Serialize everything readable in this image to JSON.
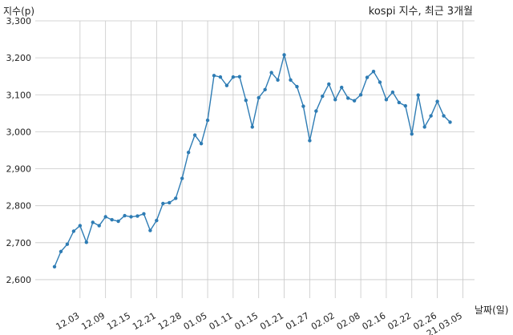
{
  "chart_data": {
    "type": "line",
    "title": "kospi 지수, 최근 3개월",
    "ylabel": "지수(p)",
    "xlabel": "날짜(일)",
    "ylim": [
      2550,
      3300
    ],
    "yticks": [
      2600,
      2700,
      2800,
      2900,
      3000,
      3100,
      3200,
      3300
    ],
    "ytick_labels": [
      "2,600",
      "2,700",
      "2,800",
      "2,900",
      "3,000",
      "3,100",
      "3,200",
      "3,300"
    ],
    "xtick_labels": [
      "12.03",
      "12.09",
      "12.15",
      "12.21",
      "12.28",
      "01.05",
      "01.11",
      "01.15",
      "01.21",
      "01.27",
      "02.02",
      "02.08",
      "02.16",
      "02.22",
      "02.26",
      "21.03.05"
    ],
    "xtick_index": [
      4,
      8,
      12,
      16,
      20,
      24,
      28,
      32,
      36,
      40,
      44,
      48,
      52,
      56,
      60,
      64
    ],
    "grid": true,
    "line_color": "#2e7cb4",
    "series": [
      {
        "values": [
          2635,
          2676,
          2696,
          2731,
          2746,
          2701,
          2755,
          2746,
          2770,
          2762,
          2758,
          2773,
          2770,
          2772,
          2778,
          2733,
          2760,
          2806,
          2808,
          2820,
          2874,
          2944,
          2991,
          2968,
          3031,
          3152,
          3148,
          3125,
          3148,
          3149,
          3085,
          3013,
          3092,
          3114,
          3160,
          3140,
          3208,
          3140,
          3122,
          3069,
          2976,
          3056,
          3096,
          3129,
          3087,
          3120,
          3091,
          3084,
          3100,
          3147,
          3163,
          3134,
          3087,
          3107,
          3079,
          3070,
          2994,
          3099,
          3013,
          3043,
          3082,
          3043,
          3026
        ]
      }
    ]
  }
}
